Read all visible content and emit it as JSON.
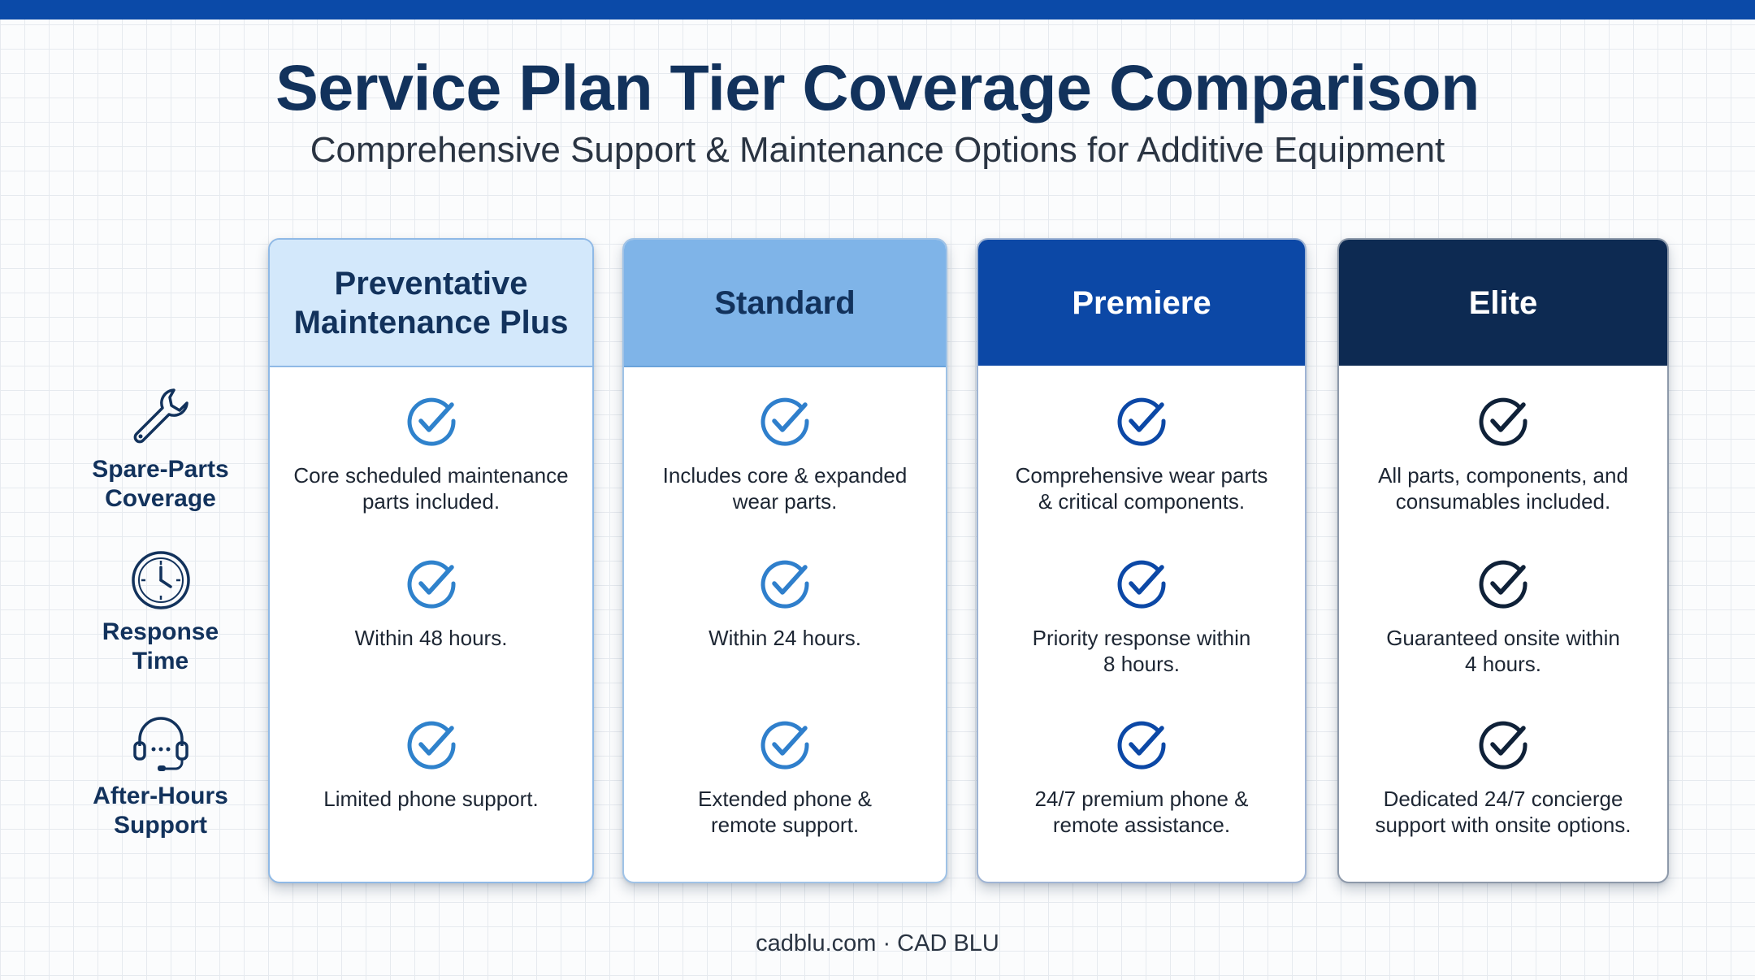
{
  "header": {
    "title": "Service Plan Tier Coverage Comparison",
    "subtitle": "Comprehensive Support & Maintenance Options for Additive Equipment"
  },
  "rows": [
    {
      "label_line1": "Spare-Parts",
      "label_line2": "Coverage",
      "icon": "wrench-icon"
    },
    {
      "label_line1": "Response",
      "label_line2": "Time",
      "icon": "clock-icon"
    },
    {
      "label_line1": "After-Hours",
      "label_line2": "Support",
      "icon": "headset-icon"
    }
  ],
  "tiers": [
    {
      "name_line1": "Preventative",
      "name_line2": "Maintenance Plus",
      "header_color": "#d3e8fb",
      "header_text_color": "#12325c",
      "border_color": "#8fb9e6",
      "check_color": "#2f82cc",
      "cells": [
        {
          "line1": "Core scheduled maintenance",
          "line2": "parts included."
        },
        {
          "line1": "Within 48 hours.",
          "line2": ""
        },
        {
          "line1": "Limited phone support.",
          "line2": ""
        }
      ]
    },
    {
      "name_line1": "Standard",
      "name_line2": "",
      "header_color": "#7fb4e8",
      "header_text_color": "#12325c",
      "border_color": "#9fc2e6",
      "check_color": "#2f7fcc",
      "cells": [
        {
          "line1": "Includes core & expanded",
          "line2": "wear parts."
        },
        {
          "line1": "Within 24 hours.",
          "line2": ""
        },
        {
          "line1": "Extended phone &",
          "line2": "remote support."
        }
      ]
    },
    {
      "name_line1": "Premiere",
      "name_line2": "",
      "header_color": "#0c48a6",
      "header_text_color": "#ffffff",
      "border_color": "#9fb4d4",
      "check_color": "#0c48a6",
      "cells": [
        {
          "line1": "Comprehensive wear parts",
          "line2": "& critical components."
        },
        {
          "line1": "Priority response within",
          "line2": "8 hours."
        },
        {
          "line1": "24/7 premium phone &",
          "line2": "remote assistance."
        }
      ]
    },
    {
      "name_line1": "Elite",
      "name_line2": "",
      "header_color": "#0d2a52",
      "header_text_color": "#ffffff",
      "border_color": "#8d99aa",
      "check_color": "#0f2138",
      "cells": [
        {
          "line1": "All parts, components, and",
          "line2": "consumables included."
        },
        {
          "line1": "Guaranteed onsite within",
          "line2": "4 hours."
        },
        {
          "line1": "Dedicated 24/7 concierge",
          "line2": "support with onsite options."
        }
      ]
    }
  ],
  "footer": {
    "text": "cadblu.com · CAD BLU"
  }
}
